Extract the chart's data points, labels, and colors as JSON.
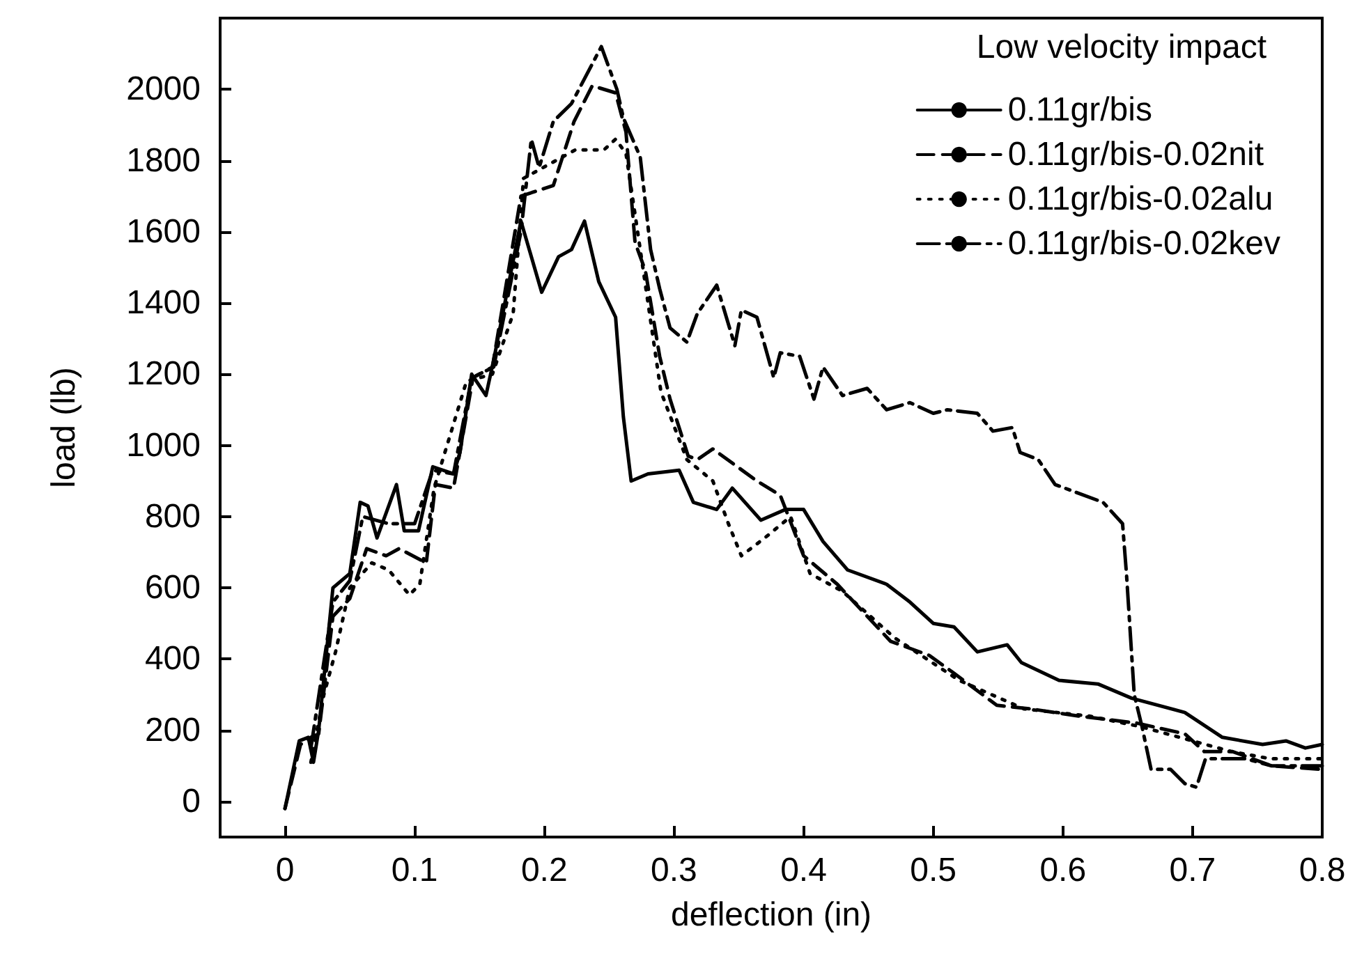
{
  "chart_data": {
    "type": "line",
    "xlabel": "deflection (in)",
    "ylabel": "load (lb)",
    "legend_title": "Low velocity impact",
    "xlim": [
      -0.05,
      0.8
    ],
    "xticks": [
      0,
      0.1,
      0.2,
      0.3,
      0.4,
      0.5,
      0.6,
      0.7,
      0.8
    ],
    "ylim": [
      -100,
      2200
    ],
    "yticks": [
      0,
      200,
      400,
      600,
      800,
      1000,
      1200,
      1400,
      1600,
      1800,
      2000
    ],
    "grid": false,
    "legend": "top right",
    "marker": "none",
    "series": [
      {
        "name": "0.11gr/bis",
        "color": "#000000",
        "line_style": "solid",
        "x": [
          0,
          0.011,
          0.018,
          0.022,
          0.026,
          0.037,
          0.05,
          0.058,
          0.064,
          0.071,
          0.086,
          0.092,
          0.103,
          0.114,
          0.13,
          0.135,
          0.144,
          0.155,
          0.161,
          0.182,
          0.198,
          0.211,
          0.221,
          0.231,
          0.242,
          0.255,
          0.261,
          0.267,
          0.28,
          0.304,
          0.315,
          0.333,
          0.345,
          0.367,
          0.386,
          0.4,
          0.415,
          0.434,
          0.464,
          0.482,
          0.5,
          0.516,
          0.534,
          0.557,
          0.568,
          0.597,
          0.627,
          0.653,
          0.694,
          0.723,
          0.754,
          0.772,
          0.787,
          0.8
        ],
        "values": [
          -20,
          170,
          180,
          110,
          200,
          600,
          640,
          840,
          830,
          740,
          890,
          760,
          760,
          940,
          920,
          980,
          1200,
          1140,
          1240,
          1630,
          1430,
          1530,
          1550,
          1630,
          1460,
          1360,
          1080,
          900,
          920,
          930,
          840,
          820,
          880,
          790,
          820,
          820,
          730,
          650,
          610,
          560,
          500,
          490,
          420,
          440,
          390,
          340,
          330,
          290,
          250,
          180,
          160,
          170,
          150,
          160
        ]
      },
      {
        "name": "0.11gr/bis-0.02nit",
        "color": "#000000",
        "line_style": "dashed",
        "x": [
          0,
          0.012,
          0.02,
          0.026,
          0.037,
          0.05,
          0.063,
          0.078,
          0.088,
          0.109,
          0.116,
          0.13,
          0.145,
          0.16,
          0.182,
          0.207,
          0.223,
          0.237,
          0.255,
          0.263,
          0.27,
          0.278,
          0.289,
          0.297,
          0.311,
          0.318,
          0.33,
          0.364,
          0.382,
          0.4,
          0.426,
          0.467,
          0.497,
          0.516,
          0.549,
          0.575,
          0.612,
          0.657,
          0.694,
          0.709,
          0.731,
          0.761,
          0.8
        ],
        "values": [
          -20,
          160,
          180,
          190,
          520,
          570,
          710,
          690,
          710,
          670,
          890,
          880,
          1190,
          1220,
          1700,
          1730,
          1910,
          2010,
          1990,
          1880,
          1570,
          1490,
          1250,
          1130,
          970,
          960,
          990,
          900,
          860,
          690,
          610,
          450,
          410,
          360,
          270,
          260,
          240,
          220,
          190,
          140,
          140,
          100,
          90
        ]
      },
      {
        "name": "0.11gr/bis-0.02alu",
        "color": "#000000",
        "line_style": "dotted",
        "x": [
          0.02,
          0.03,
          0.039,
          0.05,
          0.067,
          0.08,
          0.096,
          0.104,
          0.115,
          0.14,
          0.16,
          0.176,
          0.184,
          0.199,
          0.224,
          0.246,
          0.255,
          0.263,
          0.272,
          0.29,
          0.31,
          0.33,
          0.342,
          0.352,
          0.37,
          0.39,
          0.405,
          0.43,
          0.47,
          0.52,
          0.57,
          0.62,
          0.66,
          0.7,
          0.73,
          0.76,
          0.8
        ],
        "values": [
          110,
          300,
          420,
          600,
          670,
          650,
          580,
          610,
          880,
          1180,
          1200,
          1370,
          1750,
          1780,
          1830,
          1830,
          1860,
          1820,
          1600,
          1150,
          960,
          900,
          780,
          690,
          740,
          800,
          640,
          590,
          460,
          340,
          260,
          240,
          210,
          170,
          140,
          120,
          120
        ]
      },
      {
        "name": "0.11gr/bis-0.02kev",
        "color": "#000000",
        "line_style": "dashdot",
        "x": [
          0.02,
          0.037,
          0.05,
          0.06,
          0.08,
          0.1,
          0.114,
          0.13,
          0.144,
          0.161,
          0.182,
          0.19,
          0.196,
          0.207,
          0.221,
          0.244,
          0.256,
          0.261,
          0.274,
          0.282,
          0.289,
          0.297,
          0.31,
          0.318,
          0.333,
          0.347,
          0.352,
          0.364,
          0.377,
          0.382,
          0.397,
          0.408,
          0.415,
          0.43,
          0.449,
          0.464,
          0.482,
          0.5,
          0.511,
          0.534,
          0.546,
          0.561,
          0.567,
          0.581,
          0.594,
          0.631,
          0.646,
          0.649,
          0.655,
          0.661,
          0.668,
          0.683,
          0.694,
          0.703,
          0.71,
          0.723,
          0.741,
          0.761,
          0.8
        ],
        "values": [
          150,
          560,
          620,
          800,
          780,
          780,
          930,
          920,
          1190,
          1220,
          1600,
          1860,
          1780,
          1910,
          1960,
          2120,
          2000,
          1920,
          1810,
          1550,
          1440,
          1330,
          1290,
          1370,
          1450,
          1280,
          1380,
          1360,
          1190,
          1260,
          1250,
          1130,
          1220,
          1140,
          1160,
          1100,
          1120,
          1090,
          1100,
          1090,
          1040,
          1050,
          980,
          960,
          890,
          840,
          780,
          640,
          300,
          210,
          90,
          90,
          50,
          40,
          120,
          120,
          120,
          100,
          100
        ]
      }
    ]
  }
}
